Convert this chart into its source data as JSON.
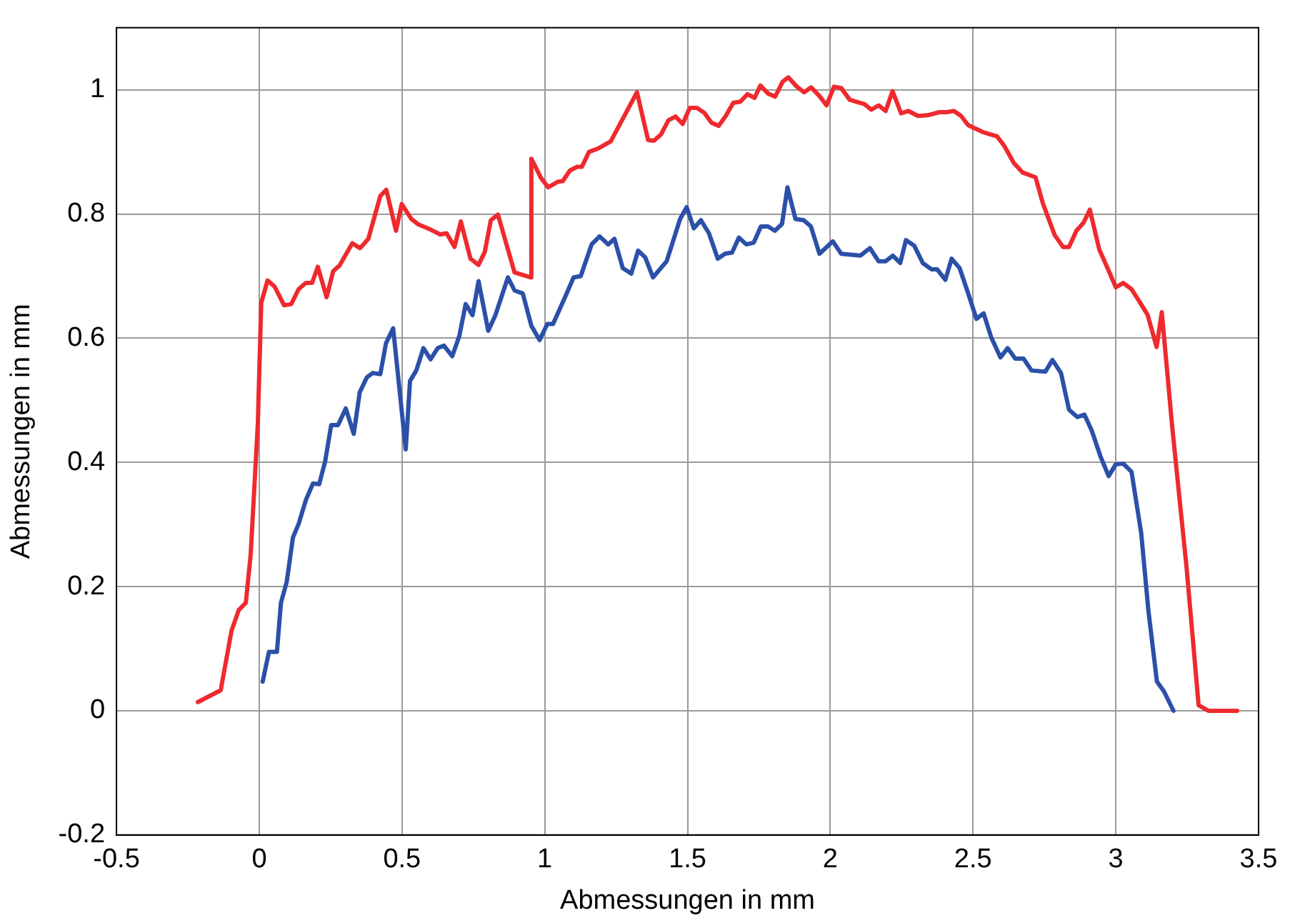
{
  "chart_data": {
    "type": "line",
    "xlabel": "Abmessungen in mm",
    "ylabel": "Abmessungen in mm",
    "xlim": [
      -0.5,
      3.5
    ],
    "xticks": [
      -0.5,
      0,
      0.5,
      1,
      1.5,
      2,
      2.5,
      3,
      3.5
    ],
    "ylim": [
      -0.2,
      1.1
    ],
    "yticks": [
      -0.2,
      0,
      0.2,
      0.4,
      0.6,
      0.8,
      1
    ],
    "grid": true,
    "line_style": "solid",
    "marker": "none",
    "series": [
      {
        "color": "#ee2a2e",
        "x": [
          -0.215,
          -0.135,
          -0.097,
          -0.072,
          -0.047,
          -0.03,
          -0.005,
          0.007,
          0.029,
          0.054,
          0.087,
          0.112,
          0.138,
          0.163,
          0.185,
          0.205,
          0.236,
          0.259,
          0.281,
          0.326,
          0.353,
          0.382,
          0.424,
          0.445,
          0.479,
          0.499,
          0.533,
          0.558,
          0.6,
          0.634,
          0.656,
          0.684,
          0.706,
          0.74,
          0.768,
          0.79,
          0.811,
          0.836,
          0.894,
          0.95,
          0.953,
          0.987,
          1.012,
          1.046,
          1.063,
          1.088,
          1.113,
          1.13,
          1.155,
          1.189,
          1.231,
          1.323,
          1.362,
          1.382,
          1.407,
          1.433,
          1.458,
          1.483,
          1.508,
          1.533,
          1.559,
          1.584,
          1.609,
          1.634,
          1.66,
          1.685,
          1.71,
          1.735,
          1.755,
          1.782,
          1.807,
          1.833,
          1.853,
          1.883,
          1.908,
          1.933,
          1.962,
          1.987,
          2.013,
          2.038,
          2.068,
          2.097,
          2.119,
          2.144,
          2.169,
          2.194,
          2.218,
          2.248,
          2.273,
          2.307,
          2.341,
          2.382,
          2.408,
          2.433,
          2.458,
          2.483,
          2.534,
          2.584,
          2.609,
          2.643,
          2.673,
          2.719,
          2.744,
          2.786,
          2.815,
          2.836,
          2.862,
          2.887,
          2.909,
          2.942,
          2.971,
          3.0,
          3.026,
          3.055,
          3.08,
          3.111,
          3.143,
          3.161,
          3.198,
          3.248,
          3.29,
          3.324,
          3.425
        ],
        "values": [
          0.014,
          0.033,
          0.129,
          0.162,
          0.174,
          0.252,
          0.462,
          0.657,
          0.693,
          0.683,
          0.653,
          0.655,
          0.679,
          0.689,
          0.689,
          0.715,
          0.666,
          0.708,
          0.717,
          0.753,
          0.745,
          0.76,
          0.829,
          0.839,
          0.773,
          0.816,
          0.792,
          0.783,
          0.775,
          0.767,
          0.769,
          0.747,
          0.788,
          0.728,
          0.718,
          0.739,
          0.79,
          0.799,
          0.706,
          0.698,
          0.889,
          0.858,
          0.843,
          0.852,
          0.853,
          0.87,
          0.876,
          0.876,
          0.9,
          0.906,
          0.917,
          0.996,
          0.919,
          0.918,
          0.928,
          0.951,
          0.957,
          0.945,
          0.971,
          0.971,
          0.963,
          0.947,
          0.942,
          0.958,
          0.979,
          0.981,
          0.993,
          0.987,
          1.007,
          0.994,
          0.989,
          1.013,
          1.02,
          1.005,
          0.996,
          1.004,
          0.99,
          0.975,
          1.005,
          1.003,
          0.984,
          0.98,
          0.977,
          0.968,
          0.975,
          0.966,
          0.998,
          0.962,
          0.966,
          0.958,
          0.959,
          0.964,
          0.964,
          0.966,
          0.958,
          0.943,
          0.932,
          0.925,
          0.91,
          0.882,
          0.867,
          0.859,
          0.818,
          0.766,
          0.747,
          0.747,
          0.773,
          0.786,
          0.807,
          0.743,
          0.713,
          0.682,
          0.689,
          0.679,
          0.661,
          0.638,
          0.586,
          0.642,
          0.455,
          0.23,
          0.009,
          0,
          0
        ]
      },
      {
        "color": "#2b50a8",
        "x": [
          0.012,
          0.034,
          0.062,
          0.076,
          0.096,
          0.118,
          0.138,
          0.163,
          0.188,
          0.21,
          0.231,
          0.252,
          0.276,
          0.303,
          0.331,
          0.352,
          0.377,
          0.398,
          0.424,
          0.444,
          0.469,
          0.513,
          0.528,
          0.55,
          0.575,
          0.6,
          0.625,
          0.647,
          0.676,
          0.701,
          0.723,
          0.747,
          0.768,
          0.802,
          0.827,
          0.871,
          0.894,
          0.923,
          0.953,
          0.982,
          1.009,
          1.029,
          1.071,
          1.101,
          1.126,
          1.164,
          1.192,
          1.222,
          1.244,
          1.273,
          1.303,
          1.327,
          1.352,
          1.379,
          1.427,
          1.474,
          1.497,
          1.522,
          1.547,
          1.575,
          1.606,
          1.631,
          1.656,
          1.68,
          1.706,
          1.732,
          1.757,
          1.782,
          1.806,
          1.831,
          1.85,
          1.878,
          1.907,
          1.932,
          1.962,
          2.009,
          2.038,
          2.105,
          2.139,
          2.169,
          2.194,
          2.219,
          2.245,
          2.265,
          2.294,
          2.324,
          2.354,
          2.374,
          2.403,
          2.425,
          2.453,
          2.483,
          2.512,
          2.537,
          2.564,
          2.596,
          2.621,
          2.648,
          2.677,
          2.705,
          2.753,
          2.778,
          2.808,
          2.836,
          2.865,
          2.89,
          2.916,
          2.946,
          2.975,
          3.0,
          3.026,
          3.055,
          3.089,
          3.114,
          3.144,
          3.169,
          3.202
        ],
        "values": [
          0.047,
          0.095,
          0.095,
          0.174,
          0.207,
          0.279,
          0.301,
          0.339,
          0.366,
          0.365,
          0.402,
          0.46,
          0.46,
          0.487,
          0.446,
          0.513,
          0.537,
          0.544,
          0.542,
          0.592,
          0.616,
          0.421,
          0.531,
          0.548,
          0.584,
          0.566,
          0.584,
          0.588,
          0.571,
          0.604,
          0.655,
          0.637,
          0.692,
          0.612,
          0.637,
          0.698,
          0.677,
          0.672,
          0.62,
          0.597,
          0.623,
          0.623,
          0.666,
          0.698,
          0.7,
          0.751,
          0.764,
          0.751,
          0.76,
          0.713,
          0.704,
          0.741,
          0.73,
          0.698,
          0.724,
          0.792,
          0.811,
          0.777,
          0.79,
          0.769,
          0.728,
          0.736,
          0.738,
          0.762,
          0.751,
          0.754,
          0.78,
          0.78,
          0.773,
          0.784,
          0.843,
          0.792,
          0.79,
          0.78,
          0.736,
          0.756,
          0.736,
          0.733,
          0.745,
          0.724,
          0.724,
          0.733,
          0.721,
          0.758,
          0.749,
          0.721,
          0.711,
          0.711,
          0.694,
          0.728,
          0.713,
          0.672,
          0.631,
          0.64,
          0.601,
          0.569,
          0.584,
          0.567,
          0.567,
          0.548,
          0.546,
          0.565,
          0.544,
          0.485,
          0.473,
          0.477,
          0.451,
          0.41,
          0.378,
          0.397,
          0.398,
          0.385,
          0.286,
          0.162,
          0.047,
          0.031,
          0
        ]
      }
    ]
  }
}
